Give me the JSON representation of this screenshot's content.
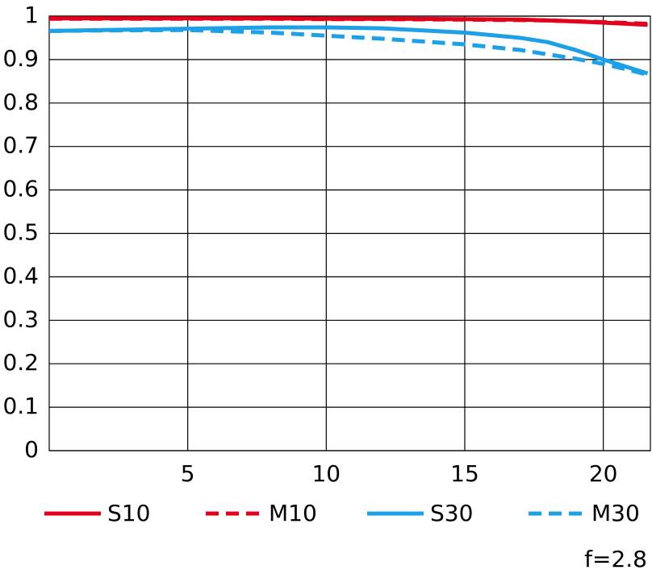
{
  "chart_data": {
    "type": "line",
    "x": [
      0,
      2,
      5,
      8,
      10,
      12,
      15,
      17,
      18,
      19,
      20,
      21,
      21.6
    ],
    "series": [
      {
        "name": "S10",
        "color": "#e3001b",
        "dash": false,
        "values": [
          0.995,
          0.995,
          0.995,
          0.995,
          0.994,
          0.994,
          0.993,
          0.992,
          0.99,
          0.988,
          0.985,
          0.982,
          0.98
        ]
      },
      {
        "name": "M10",
        "color": "#e3001b",
        "dash": true,
        "values": [
          0.994,
          0.994,
          0.994,
          0.994,
          0.993,
          0.993,
          0.992,
          0.991,
          0.99,
          0.988,
          0.986,
          0.984,
          0.982
        ]
      },
      {
        "name": "S30",
        "color": "#1ea0e6",
        "dash": false,
        "values": [
          0.966,
          0.968,
          0.971,
          0.974,
          0.974,
          0.972,
          0.962,
          0.95,
          0.94,
          0.922,
          0.9,
          0.88,
          0.868
        ]
      },
      {
        "name": "M30",
        "color": "#1ea0e6",
        "dash": true,
        "values": [
          0.966,
          0.967,
          0.968,
          0.962,
          0.955,
          0.948,
          0.935,
          0.922,
          0.912,
          0.902,
          0.89,
          0.875,
          0.865
        ]
      }
    ],
    "xlim": [
      0,
      21.7
    ],
    "ylim": [
      0,
      1
    ],
    "xticks": [
      5,
      10,
      15,
      20
    ],
    "yticks": [
      0,
      0.1,
      0.2,
      0.3,
      0.4,
      0.5,
      0.6,
      0.7,
      0.8,
      0.9,
      1
    ],
    "grid": true,
    "annotation": "f=2.8"
  }
}
